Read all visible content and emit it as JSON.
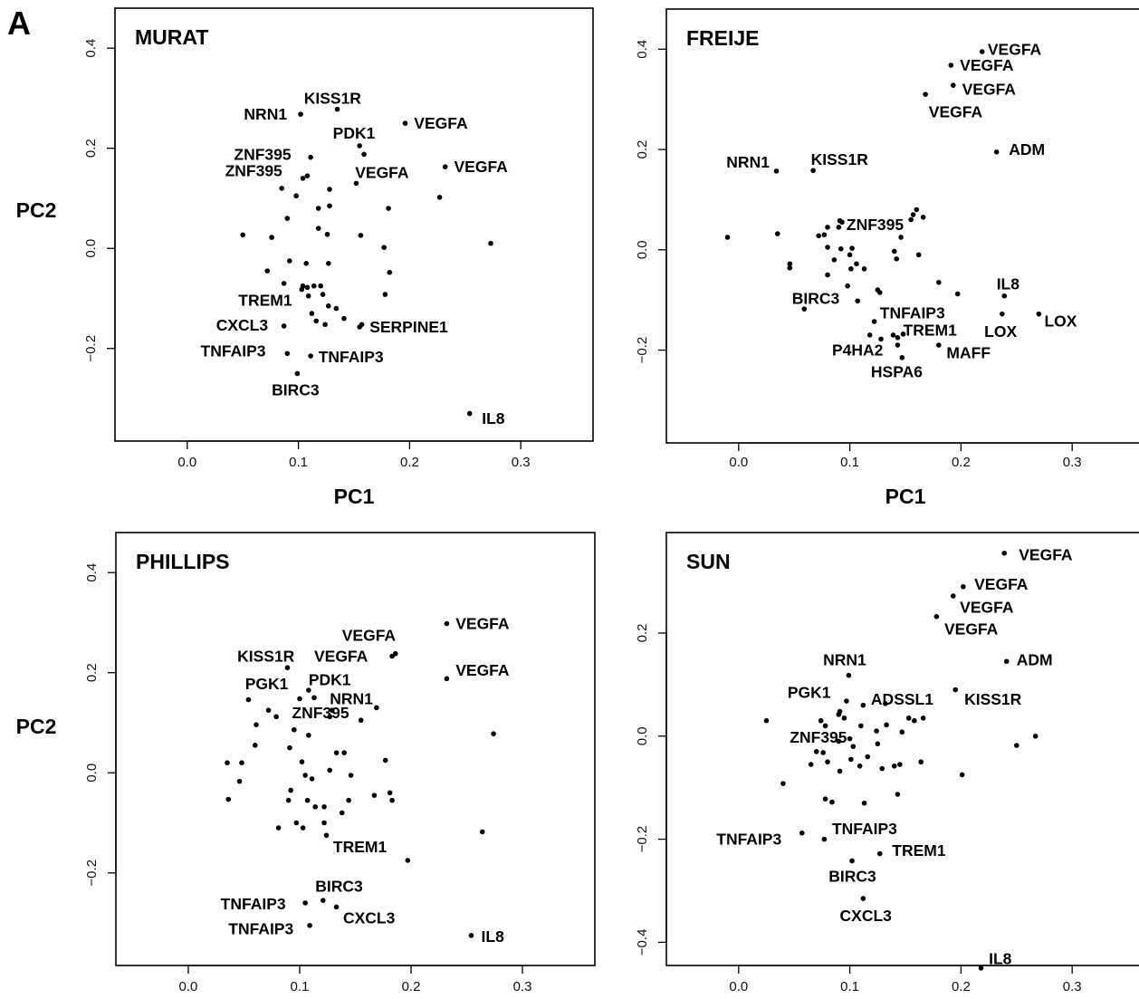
{
  "figure_label": "A",
  "chart_data": [
    {
      "type": "scatter",
      "title": "MURAT",
      "xlabel": "PC1",
      "ylabel": "PC2",
      "xlim": [
        -0.065,
        0.365
      ],
      "ylim": [
        -0.385,
        0.48
      ],
      "xticks": [
        0.0,
        0.1,
        0.2,
        0.3
      ],
      "yticks": [
        -0.2,
        0.0,
        0.2,
        0.4
      ],
      "points": [
        [
          0.135,
          0.278
        ],
        [
          0.102,
          0.268
        ],
        [
          0.196,
          0.25
        ],
        [
          0.155,
          0.205
        ],
        [
          0.159,
          0.188
        ],
        [
          0.111,
          0.182
        ],
        [
          0.232,
          0.163
        ],
        [
          0.104,
          0.14
        ],
        [
          0.108,
          0.145
        ],
        [
          0.152,
          0.13
        ],
        [
          0.085,
          0.12
        ],
        [
          0.128,
          0.118
        ],
        [
          0.098,
          0.105
        ],
        [
          0.227,
          0.102
        ],
        [
          0.128,
          0.085
        ],
        [
          0.118,
          0.08
        ],
        [
          0.181,
          0.08
        ],
        [
          0.09,
          0.06
        ],
        [
          0.118,
          0.04
        ],
        [
          0.126,
          0.028
        ],
        [
          0.05,
          0.027
        ],
        [
          0.076,
          0.022
        ],
        [
          0.156,
          0.026
        ],
        [
          0.177,
          0.002
        ],
        [
          0.273,
          0.01
        ],
        [
          0.092,
          -0.025
        ],
        [
          0.107,
          -0.03
        ],
        [
          0.127,
          -0.03
        ],
        [
          0.072,
          -0.045
        ],
        [
          0.182,
          -0.048
        ],
        [
          0.087,
          -0.07
        ],
        [
          0.104,
          -0.075
        ],
        [
          0.108,
          -0.078
        ],
        [
          0.114,
          -0.075
        ],
        [
          0.12,
          -0.075
        ],
        [
          0.103,
          -0.082
        ],
        [
          0.178,
          -0.092
        ],
        [
          0.109,
          -0.095
        ],
        [
          0.122,
          -0.092
        ],
        [
          0.127,
          -0.115
        ],
        [
          0.134,
          -0.12
        ],
        [
          0.112,
          -0.13
        ],
        [
          0.116,
          -0.145
        ],
        [
          0.141,
          -0.14
        ],
        [
          0.124,
          -0.152
        ],
        [
          0.157,
          -0.152
        ],
        [
          0.155,
          -0.157
        ],
        [
          0.087,
          -0.155
        ],
        [
          0.09,
          -0.21
        ],
        [
          0.111,
          -0.215
        ],
        [
          0.099,
          -0.25
        ],
        [
          0.254,
          -0.33
        ]
      ],
      "labels": [
        {
          "text": "KISS1R",
          "x": 0.105,
          "y": 0.3
        },
        {
          "text": "NRN1",
          "x": 0.051,
          "y": 0.268
        },
        {
          "text": "VEGFA",
          "x": 0.204,
          "y": 0.25
        },
        {
          "text": "PDK1",
          "x": 0.131,
          "y": 0.23
        },
        {
          "text": "ZNF395",
          "x": 0.042,
          "y": 0.188
        },
        {
          "text": "VEGFA",
          "x": 0.24,
          "y": 0.163
        },
        {
          "text": "ZNF395",
          "x": 0.034,
          "y": 0.155
        },
        {
          "text": "VEGFA",
          "x": 0.151,
          "y": 0.152
        },
        {
          "text": "TREM1",
          "x": 0.046,
          "y": -0.104
        },
        {
          "text": "CXCL3",
          "x": 0.026,
          "y": -0.153
        },
        {
          "text": "SERPINE1",
          "x": 0.164,
          "y": -0.157
        },
        {
          "text": "TNFAIP3",
          "x": 0.012,
          "y": -0.205
        },
        {
          "text": "TNFAIP3",
          "x": 0.118,
          "y": -0.217
        },
        {
          "text": "BIRC3",
          "x": 0.076,
          "y": -0.283
        },
        {
          "text": "IL8",
          "x": 0.265,
          "y": -0.34
        }
      ]
    },
    {
      "type": "scatter",
      "title": "FREIJE",
      "xlabel": "PC1",
      "ylabel": "",
      "xlim": [
        -0.065,
        0.365
      ],
      "ylim": [
        -0.385,
        0.48
      ],
      "xticks": [
        0.0,
        0.1,
        0.2,
        0.3
      ],
      "yticks": [
        -0.2,
        0.0,
        0.2,
        0.4
      ],
      "points": [
        [
          0.219,
          0.395
        ],
        [
          0.191,
          0.368
        ],
        [
          0.193,
          0.328
        ],
        [
          0.168,
          0.31
        ],
        [
          0.232,
          0.195
        ],
        [
          0.034,
          0.157
        ],
        [
          0.067,
          0.158
        ],
        [
          -0.01,
          0.025
        ],
        [
          0.035,
          0.032
        ],
        [
          0.046,
          -0.028
        ],
        [
          0.046,
          -0.036
        ],
        [
          0.077,
          0.03
        ],
        [
          0.08,
          0.045
        ],
        [
          0.091,
          0.058
        ],
        [
          0.093,
          0.055
        ],
        [
          0.09,
          0.045
        ],
        [
          0.072,
          0.028
        ],
        [
          0.08,
          0.005
        ],
        [
          0.092,
          0.002
        ],
        [
          0.1,
          -0.01
        ],
        [
          0.102,
          0.003
        ],
        [
          0.086,
          -0.02
        ],
        [
          0.101,
          -0.038
        ],
        [
          0.106,
          -0.028
        ],
        [
          0.113,
          -0.038
        ],
        [
          0.08,
          -0.05
        ],
        [
          0.098,
          -0.072
        ],
        [
          0.125,
          -0.08
        ],
        [
          0.127,
          -0.085
        ],
        [
          0.107,
          -0.102
        ],
        [
          0.16,
          0.08
        ],
        [
          0.166,
          0.065
        ],
        [
          0.157,
          0.07
        ],
        [
          0.155,
          0.06
        ],
        [
          0.146,
          0.025
        ],
        [
          0.14,
          -0.003
        ],
        [
          0.142,
          -0.018
        ],
        [
          0.162,
          -0.01
        ],
        [
          0.18,
          -0.065
        ],
        [
          0.197,
          -0.088
        ],
        [
          0.239,
          -0.092
        ],
        [
          0.237,
          -0.128
        ],
        [
          0.27,
          -0.128
        ],
        [
          0.059,
          -0.118
        ],
        [
          0.122,
          -0.143
        ],
        [
          0.118,
          -0.17
        ],
        [
          0.128,
          -0.178
        ],
        [
          0.139,
          -0.17
        ],
        [
          0.143,
          -0.175
        ],
        [
          0.148,
          -0.168
        ],
        [
          0.143,
          -0.19
        ],
        [
          0.147,
          -0.215
        ],
        [
          0.18,
          -0.19
        ]
      ],
      "labels": [
        {
          "text": "VEGFA",
          "x": 0.224,
          "y": 0.4
        },
        {
          "text": "VEGFA",
          "x": 0.199,
          "y": 0.368
        },
        {
          "text": "VEGFA",
          "x": 0.201,
          "y": 0.32
        },
        {
          "text": "VEGFA",
          "x": 0.171,
          "y": 0.275
        },
        {
          "text": "ADM",
          "x": 0.243,
          "y": 0.2
        },
        {
          "text": "NRN1",
          "x": -0.011,
          "y": 0.175
        },
        {
          "text": "KISS1R",
          "x": 0.065,
          "y": 0.18
        },
        {
          "text": "ZNF395",
          "x": 0.097,
          "y": 0.05
        },
        {
          "text": "IL8",
          "x": 0.232,
          "y": -0.068
        },
        {
          "text": "BIRC3",
          "x": 0.048,
          "y": -0.097
        },
        {
          "text": "TNFAIP3",
          "x": 0.127,
          "y": -0.126
        },
        {
          "text": "LOX",
          "x": 0.275,
          "y": -0.142
        },
        {
          "text": "TREM1",
          "x": 0.148,
          "y": -0.16
        },
        {
          "text": "LOX",
          "x": 0.221,
          "y": -0.163
        },
        {
          "text": "P4HA2",
          "x": 0.084,
          "y": -0.2
        },
        {
          "text": "MAFF",
          "x": 0.187,
          "y": -0.205
        },
        {
          "text": "HSPA6",
          "x": 0.119,
          "y": -0.243
        }
      ]
    },
    {
      "type": "scatter",
      "title": "PHILLIPS",
      "xlabel": "",
      "ylabel": "PC2",
      "xlim": [
        -0.065,
        0.365
      ],
      "ylim": [
        -0.385,
        0.48
      ],
      "xticks": [
        0.0,
        0.1,
        0.2,
        0.3
      ],
      "yticks": [
        -0.2,
        0.0,
        0.2,
        0.4
      ],
      "points": [
        [
          0.232,
          0.298
        ],
        [
          0.186,
          0.238
        ],
        [
          0.183,
          0.233
        ],
        [
          0.232,
          0.188
        ],
        [
          0.089,
          0.21
        ],
        [
          0.054,
          0.146
        ],
        [
          0.072,
          0.125
        ],
        [
          0.079,
          0.112
        ],
        [
          0.1,
          0.148
        ],
        [
          0.113,
          0.15
        ],
        [
          0.108,
          0.165
        ],
        [
          0.129,
          0.125
        ],
        [
          0.127,
          0.112
        ],
        [
          0.155,
          0.105
        ],
        [
          0.169,
          0.13
        ],
        [
          0.061,
          0.096
        ],
        [
          0.095,
          0.086
        ],
        [
          0.108,
          0.075
        ],
        [
          0.06,
          0.055
        ],
        [
          0.091,
          0.05
        ],
        [
          0.133,
          0.04
        ],
        [
          0.14,
          0.04
        ],
        [
          0.035,
          0.02
        ],
        [
          0.048,
          0.02
        ],
        [
          0.102,
          0.022
        ],
        [
          0.177,
          0.025
        ],
        [
          0.274,
          0.078
        ],
        [
          0.127,
          0.005
        ],
        [
          0.146,
          -0.005
        ],
        [
          0.105,
          -0.005
        ],
        [
          0.111,
          -0.012
        ],
        [
          0.046,
          -0.017
        ],
        [
          0.036,
          -0.053
        ],
        [
          0.092,
          -0.035
        ],
        [
          0.09,
          -0.055
        ],
        [
          0.107,
          -0.055
        ],
        [
          0.114,
          -0.068
        ],
        [
          0.122,
          -0.068
        ],
        [
          0.144,
          -0.055
        ],
        [
          0.138,
          -0.08
        ],
        [
          0.167,
          -0.045
        ],
        [
          0.181,
          -0.04
        ],
        [
          0.183,
          -0.055
        ],
        [
          0.081,
          -0.11
        ],
        [
          0.097,
          -0.1
        ],
        [
          0.103,
          -0.11
        ],
        [
          0.122,
          -0.1
        ],
        [
          0.124,
          -0.125
        ],
        [
          0.264,
          -0.118
        ],
        [
          0.197,
          -0.175
        ],
        [
          0.105,
          -0.26
        ],
        [
          0.121,
          -0.255
        ],
        [
          0.133,
          -0.268
        ],
        [
          0.109,
          -0.305
        ],
        [
          0.254,
          -0.325
        ]
      ],
      "labels": [
        {
          "text": "VEGFA",
          "x": 0.24,
          "y": 0.298
        },
        {
          "text": "VEGFA",
          "x": 0.138,
          "y": 0.275
        },
        {
          "text": "KISS1R",
          "x": 0.044,
          "y": 0.233
        },
        {
          "text": "VEGFA",
          "x": 0.113,
          "y": 0.233
        },
        {
          "text": "VEGFA",
          "x": 0.24,
          "y": 0.205
        },
        {
          "text": "PGK1",
          "x": 0.051,
          "y": 0.178
        },
        {
          "text": "PDK1",
          "x": 0.108,
          "y": 0.186
        },
        {
          "text": "NRN1",
          "x": 0.127,
          "y": 0.148
        },
        {
          "text": "ZNF395",
          "x": 0.093,
          "y": 0.12
        },
        {
          "text": "TREM1",
          "x": 0.13,
          "y": -0.148
        },
        {
          "text": "BIRC3",
          "x": 0.114,
          "y": -0.227
        },
        {
          "text": "TNFAIP3",
          "x": 0.029,
          "y": -0.262
        },
        {
          "text": "CXCL3",
          "x": 0.139,
          "y": -0.29
        },
        {
          "text": "TNFAIP3",
          "x": 0.036,
          "y": -0.312
        },
        {
          "text": "IL8",
          "x": 0.263,
          "y": -0.327
        }
      ]
    },
    {
      "type": "scatter",
      "title": "SUN",
      "xlabel": "",
      "ylabel": "",
      "xlim": [
        -0.065,
        0.365
      ],
      "ylim": [
        -0.445,
        0.395
      ],
      "xticks": [
        0.0,
        0.1,
        0.2,
        0.3
      ],
      "yticks": [
        -0.4,
        -0.2,
        0.0,
        0.2
      ],
      "points": [
        [
          0.239,
          0.355
        ],
        [
          0.202,
          0.29
        ],
        [
          0.193,
          0.272
        ],
        [
          0.178,
          0.232
        ],
        [
          0.241,
          0.145
        ],
        [
          0.099,
          0.118
        ],
        [
          0.195,
          0.09
        ],
        [
          0.097,
          0.068
        ],
        [
          0.112,
          0.06
        ],
        [
          0.132,
          0.063
        ],
        [
          0.091,
          0.048
        ],
        [
          0.09,
          0.042
        ],
        [
          0.095,
          0.035
        ],
        [
          0.025,
          0.03
        ],
        [
          0.074,
          0.03
        ],
        [
          0.078,
          0.02
        ],
        [
          0.11,
          0.02
        ],
        [
          0.124,
          0.01
        ],
        [
          0.133,
          0.022
        ],
        [
          0.147,
          0.008
        ],
        [
          0.153,
          0.035
        ],
        [
          0.158,
          0.03
        ],
        [
          0.166,
          0.035
        ],
        [
          0.267,
          0.0
        ],
        [
          0.25,
          -0.018
        ],
        [
          0.09,
          -0.01
        ],
        [
          0.1,
          -0.005
        ],
        [
          0.103,
          -0.02
        ],
        [
          0.125,
          -0.015
        ],
        [
          0.07,
          -0.03
        ],
        [
          0.076,
          -0.032
        ],
        [
          0.065,
          -0.055
        ],
        [
          0.08,
          -0.05
        ],
        [
          0.091,
          -0.068
        ],
        [
          0.101,
          -0.045
        ],
        [
          0.109,
          -0.058
        ],
        [
          0.116,
          -0.04
        ],
        [
          0.129,
          -0.063
        ],
        [
          0.14,
          -0.058
        ],
        [
          0.145,
          -0.055
        ],
        [
          0.164,
          -0.05
        ],
        [
          0.201,
          -0.075
        ],
        [
          0.04,
          -0.092
        ],
        [
          0.078,
          -0.122
        ],
        [
          0.084,
          -0.128
        ],
        [
          0.113,
          -0.13
        ],
        [
          0.143,
          -0.113
        ],
        [
          0.057,
          -0.188
        ],
        [
          0.077,
          -0.2
        ],
        [
          0.127,
          -0.228
        ],
        [
          0.102,
          -0.242
        ],
        [
          0.112,
          -0.315
        ],
        [
          0.218,
          -0.45
        ]
      ],
      "labels": [
        {
          "text": "VEGFA",
          "x": 0.252,
          "y": 0.352
        },
        {
          "text": "VEGFA",
          "x": 0.212,
          "y": 0.295
        },
        {
          "text": "VEGFA",
          "x": 0.199,
          "y": 0.25
        },
        {
          "text": "VEGFA",
          "x": 0.185,
          "y": 0.208
        },
        {
          "text": "NRN1",
          "x": 0.076,
          "y": 0.148
        },
        {
          "text": "ADM",
          "x": 0.25,
          "y": 0.148
        },
        {
          "text": "PGK1",
          "x": 0.044,
          "y": 0.085
        },
        {
          "text": "ADSSL1",
          "x": 0.119,
          "y": 0.072
        },
        {
          "text": "KISS1R",
          "x": 0.203,
          "y": 0.072
        },
        {
          "text": "ZNF395",
          "x": 0.046,
          "y": -0.002
        },
        {
          "text": "TNFAIP3",
          "x": 0.084,
          "y": -0.18
        },
        {
          "text": "TNFAIP3",
          "x": -0.02,
          "y": -0.2
        },
        {
          "text": "TREM1",
          "x": 0.138,
          "y": -0.222
        },
        {
          "text": "BIRC3",
          "x": 0.081,
          "y": -0.272
        },
        {
          "text": "CXCL3",
          "x": 0.091,
          "y": -0.348
        },
        {
          "text": "IL8",
          "x": 0.225,
          "y": -0.432
        }
      ]
    }
  ]
}
